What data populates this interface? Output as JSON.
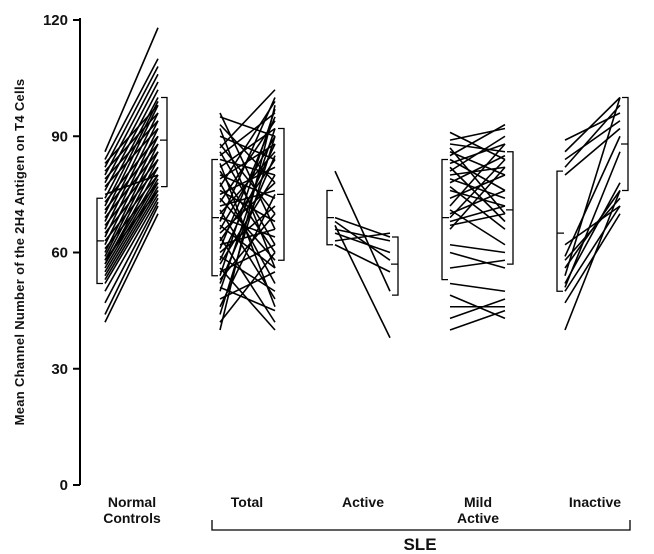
{
  "chart_data": {
    "type": "line",
    "ylabel": "Mean Channel Number of the 2H4 Antigen on T4 Cells",
    "ylim": [
      0,
      120
    ],
    "yticks": [
      "0",
      "30",
      "60",
      "90",
      "120"
    ],
    "categories": [
      {
        "label_lines": [
          "Normal",
          "Controls"
        ]
      },
      {
        "label_lines": [
          "Total"
        ]
      },
      {
        "label_lines": [
          "Active"
        ]
      },
      {
        "label_lines": [
          "Mild",
          "Active"
        ]
      },
      {
        "label_lines": [
          "Inactive"
        ]
      }
    ],
    "group_label": "SLE",
    "groups": [
      {
        "pairs": [
          [
            42,
            70
          ],
          [
            44,
            72
          ],
          [
            47,
            73
          ],
          [
            50,
            74
          ],
          [
            52,
            75
          ],
          [
            53,
            76
          ],
          [
            54,
            77
          ],
          [
            55,
            78
          ],
          [
            56,
            79
          ],
          [
            57,
            80
          ],
          [
            57,
            82
          ],
          [
            58,
            76
          ],
          [
            58,
            84
          ],
          [
            59,
            86
          ],
          [
            60,
            88
          ],
          [
            61,
            78
          ],
          [
            62,
            90
          ],
          [
            63,
            80
          ],
          [
            64,
            92
          ],
          [
            65,
            82
          ],
          [
            66,
            94
          ],
          [
            67,
            84
          ],
          [
            68,
            96
          ],
          [
            69,
            86
          ],
          [
            70,
            98
          ],
          [
            71,
            88
          ],
          [
            72,
            99
          ],
          [
            73,
            90
          ],
          [
            74,
            100
          ],
          [
            75,
            80
          ],
          [
            76,
            102
          ],
          [
            77,
            92
          ],
          [
            78,
            104
          ],
          [
            79,
            94
          ],
          [
            80,
            106
          ],
          [
            81,
            96
          ],
          [
            82,
            108
          ],
          [
            83,
            98
          ],
          [
            84,
            110
          ],
          [
            86,
            118
          ]
        ],
        "bracket_left": {
          "low": 52,
          "mean": 63,
          "high": 74
        },
        "bracket_right": {
          "low": 77,
          "mean": 89,
          "high": 100
        }
      },
      {
        "pairs": [
          [
            40,
            98
          ],
          [
            42,
            60
          ],
          [
            44,
            90
          ],
          [
            46,
            75
          ],
          [
            48,
            55
          ],
          [
            50,
            92
          ],
          [
            51,
            45
          ],
          [
            52,
            85
          ],
          [
            53,
            70
          ],
          [
            54,
            97
          ],
          [
            55,
            62
          ],
          [
            56,
            40
          ],
          [
            57,
            80
          ],
          [
            58,
            88
          ],
          [
            59,
            50
          ],
          [
            60,
            72
          ],
          [
            61,
            95
          ],
          [
            62,
            66
          ],
          [
            63,
            84
          ],
          [
            64,
            42
          ],
          [
            65,
            78
          ],
          [
            66,
            90
          ],
          [
            67,
            56
          ],
          [
            68,
            100
          ],
          [
            69,
            64
          ],
          [
            70,
            86
          ],
          [
            71,
            48
          ],
          [
            72,
            76
          ],
          [
            73,
            94
          ],
          [
            74,
            58
          ],
          [
            75,
            82
          ],
          [
            76,
            68
          ],
          [
            77,
            99
          ],
          [
            78,
            52
          ],
          [
            79,
            88
          ],
          [
            80,
            74
          ],
          [
            81,
            60
          ],
          [
            82,
            92
          ],
          [
            83,
            46
          ],
          [
            84,
            80
          ],
          [
            85,
            96
          ],
          [
            86,
            62
          ],
          [
            87,
            102
          ],
          [
            88,
            70
          ],
          [
            90,
            84
          ],
          [
            92,
            56
          ],
          [
            93,
            78
          ],
          [
            95,
            90
          ],
          [
            96,
            66
          ]
        ],
        "bracket_left": {
          "low": 54,
          "mean": 69,
          "high": 84
        },
        "bracket_right": {
          "low": 58,
          "mean": 75,
          "high": 92
        }
      },
      {
        "pairs": [
          [
            81,
            50
          ],
          [
            69,
            64
          ],
          [
            68,
            58
          ],
          [
            67,
            38
          ],
          [
            66,
            63
          ],
          [
            65,
            60
          ],
          [
            63,
            65
          ],
          [
            62,
            55
          ]
        ],
        "bracket_left": {
          "low": 62,
          "mean": 69,
          "high": 76
        },
        "bracket_right": {
          "low": 49,
          "mean": 57,
          "high": 64
        }
      },
      {
        "pairs": [
          [
            91,
            84
          ],
          [
            89,
            92
          ],
          [
            88,
            86
          ],
          [
            87,
            70
          ],
          [
            86,
            80
          ],
          [
            85,
            93
          ],
          [
            84,
            76
          ],
          [
            83,
            88
          ],
          [
            82,
            68
          ],
          [
            81,
            90
          ],
          [
            80,
            82
          ],
          [
            79,
            74
          ],
          [
            78,
            85
          ],
          [
            77,
            66
          ],
          [
            76,
            72
          ],
          [
            74,
            80
          ],
          [
            72,
            88
          ],
          [
            71,
            62
          ],
          [
            70,
            76
          ],
          [
            69,
            84
          ],
          [
            68,
            72
          ],
          [
            67,
            70
          ],
          [
            66,
            82
          ],
          [
            62,
            60
          ],
          [
            60,
            56
          ],
          [
            56,
            58
          ],
          [
            52,
            50
          ],
          [
            49,
            43
          ],
          [
            46,
            46
          ],
          [
            43,
            48
          ],
          [
            40,
            45
          ]
        ],
        "bracket_left": {
          "low": 53,
          "mean": 69,
          "high": 84
        },
        "bracket_right": {
          "low": 57,
          "mean": 71,
          "high": 86
        }
      },
      {
        "pairs": [
          [
            89,
            96
          ],
          [
            86,
            100
          ],
          [
            84,
            94
          ],
          [
            82,
            98
          ],
          [
            80,
            92
          ],
          [
            62,
            72
          ],
          [
            59,
            90
          ],
          [
            58,
            74
          ],
          [
            56,
            76
          ],
          [
            54,
            100
          ],
          [
            52,
            78
          ],
          [
            51,
            86
          ],
          [
            50,
            72
          ],
          [
            47,
            70
          ],
          [
            40,
            76
          ]
        ],
        "bracket_left": {
          "low": 50,
          "mean": 65,
          "high": 81
        },
        "bracket_right": {
          "low": 76,
          "mean": 88,
          "high": 100
        }
      }
    ]
  }
}
